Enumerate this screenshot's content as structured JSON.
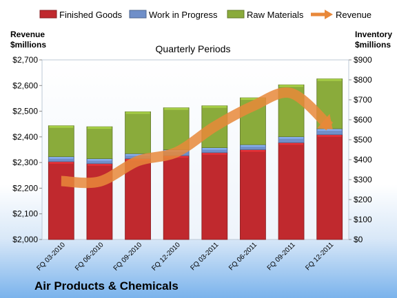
{
  "chart_data": {
    "type": "bar",
    "stacked": true,
    "title": "Quarterly Periods",
    "footer_title": "Air Products & Chemicals",
    "categories": [
      "FQ 03-2010",
      "FQ 06-2010",
      "FQ 09-2010",
      "FQ 12-2010",
      "FQ 03-2011",
      "FQ 06-2011",
      "FQ 09-2011",
      "FQ 12-2011"
    ],
    "left_axis": {
      "title_line1": "Revenue",
      "title_line2": "$millions",
      "range": [
        2000,
        2700
      ],
      "ticks": [
        "$2,000",
        "$2,100",
        "$2,200",
        "$2,300",
        "$2,400",
        "$2,500",
        "$2,600",
        "$2,700"
      ]
    },
    "right_axis": {
      "title_line1": "Inventory",
      "title_line2": "$millions",
      "range": [
        0,
        900
      ],
      "ticks": [
        "$0",
        "$100",
        "$200",
        "$300",
        "$400",
        "$500",
        "$600",
        "$700",
        "$800",
        "$900"
      ]
    },
    "series": [
      {
        "name": "Finished Goods",
        "axis": "right",
        "color": "#c0292e",
        "values": [
          390,
          380,
          405,
          420,
          435,
          450,
          485,
          525
        ]
      },
      {
        "name": "Work in Progress",
        "axis": "right",
        "color": "#6f8fc9",
        "values": [
          25,
          25,
          25,
          30,
          25,
          25,
          30,
          30
        ]
      },
      {
        "name": "Raw Materials",
        "axis": "right",
        "color": "#8aab3b",
        "values": [
          155,
          160,
          210,
          210,
          210,
          235,
          260,
          250
        ]
      },
      {
        "name": "Revenue",
        "axis": "left",
        "type": "line",
        "color": "#e8883a",
        "values": [
          2228,
          2226,
          2306,
          2340,
          2440,
          2520,
          2570,
          2440
        ]
      }
    ],
    "grid": false,
    "legend": "top"
  }
}
